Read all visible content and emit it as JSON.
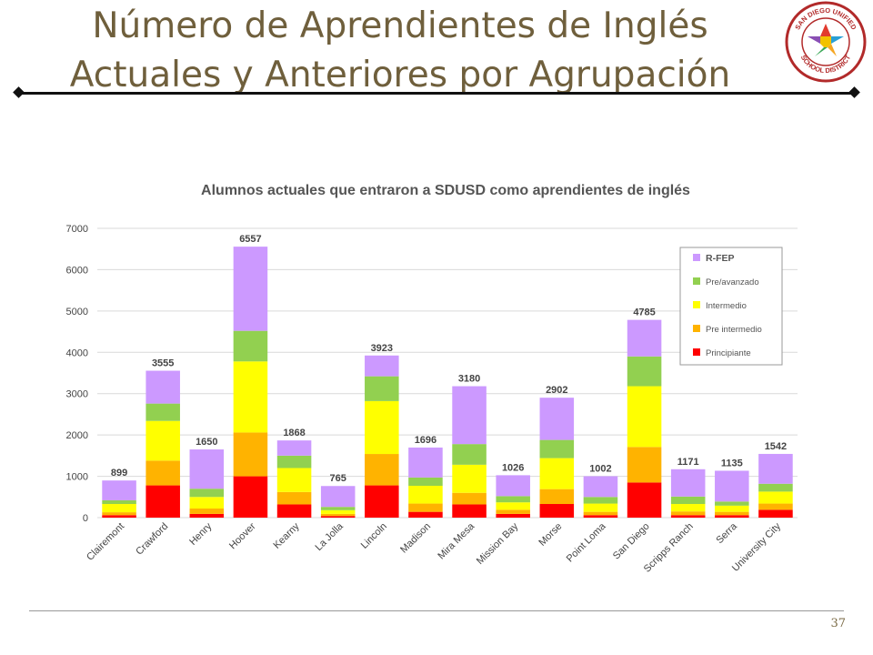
{
  "slide": {
    "title_line1": "Número de Aprendientes de Inglés",
    "title_line2": "Actuales y Anteriores por Agrupación",
    "logo_text_top": "SAN DIEGO UNIFIED",
    "logo_text_bottom": "SCHOOL DISTRICT",
    "page_number": "37"
  },
  "chart_data": {
    "type": "bar",
    "stacked": true,
    "title": "Alumnos actuales que entraron a SDUSD como aprendientes de inglés",
    "xlabel": "",
    "ylabel": "",
    "ylim": [
      0,
      7000
    ],
    "yticks": [
      0,
      1000,
      2000,
      3000,
      4000,
      5000,
      6000,
      7000
    ],
    "grid": true,
    "legend_position": "right",
    "categories": [
      "Clairemont",
      "Crawford",
      "Henry",
      "Hoover",
      "Kearny",
      "La Jolla",
      "Lincoln",
      "Madison",
      "Mira Mesa",
      "Mission Bay",
      "Morse",
      "Point Loma",
      "San Diego",
      "Scripps Ranch",
      "Serra",
      "University City"
    ],
    "totals": [
      899,
      3555,
      1650,
      6557,
      1868,
      765,
      3923,
      1696,
      3180,
      1026,
      2902,
      1002,
      4785,
      1171,
      1135,
      1542
    ],
    "series": [
      {
        "name": "Principiante",
        "color": "#ff0000",
        "values": [
          60,
          780,
          90,
          1000,
          320,
          40,
          780,
          140,
          320,
          90,
          330,
          60,
          850,
          60,
          60,
          190
        ]
      },
      {
        "name": "Pre intermedio",
        "color": "#ffb300",
        "values": [
          70,
          600,
          130,
          1060,
          300,
          50,
          760,
          200,
          280,
          100,
          360,
          80,
          860,
          90,
          80,
          150
        ]
      },
      {
        "name": "Intermedio",
        "color": "#ffff00",
        "values": [
          200,
          960,
          280,
          1720,
          580,
          90,
          1280,
          430,
          680,
          180,
          750,
          200,
          1470,
          180,
          150,
          290
        ]
      },
      {
        "name": "Pre/avanzado",
        "color": "#92d050",
        "values": [
          90,
          420,
          200,
          740,
          300,
          80,
          600,
          200,
          500,
          150,
          440,
          160,
          720,
          180,
          100,
          190
        ]
      },
      {
        "name": "R-FEP",
        "color": "#cc99ff",
        "values": [
          479,
          795,
          950,
          2037,
          368,
          505,
          503,
          726,
          1400,
          506,
          1022,
          502,
          885,
          661,
          745,
          722
        ]
      }
    ],
    "legend_order": [
      "R-FEP",
      "Pre/avanzado",
      "Intermedio",
      "Pre intermedio",
      "Principiante"
    ]
  }
}
